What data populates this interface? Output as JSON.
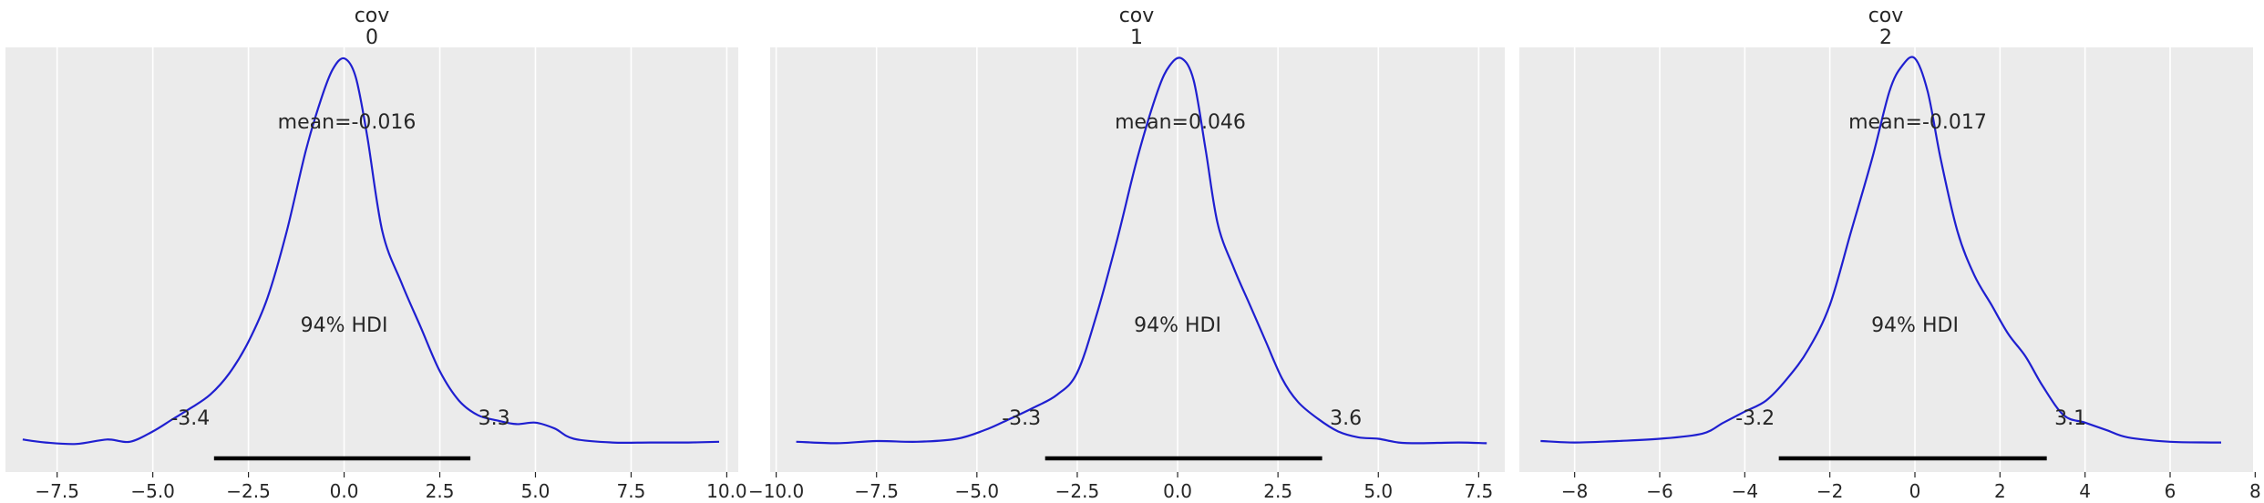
{
  "chart_data": [
    {
      "type": "line",
      "title": [
        "cov",
        "0"
      ],
      "series": [
        {
          "color": "#1f1fd0",
          "x": [
            -8.4,
            -7.8,
            -7.0,
            -6.2,
            -5.6,
            -5.0,
            -4.5,
            -4.0,
            -3.5,
            -3.0,
            -2.5,
            -2.0,
            -1.5,
            -1.0,
            -0.6,
            -0.3,
            0.0,
            0.3,
            0.6,
            1.0,
            1.5,
            2.0,
            2.5,
            3.0,
            3.5,
            4.0,
            4.5,
            5.0,
            5.5,
            6.0,
            7.0,
            8.0,
            9.0,
            9.8
          ],
          "y": [
            0.007,
            0.003,
            0.001,
            0.007,
            0.004,
            0.018,
            0.034,
            0.05,
            0.068,
            0.097,
            0.14,
            0.2,
            0.29,
            0.4,
            0.47,
            0.51,
            0.525,
            0.5,
            0.42,
            0.29,
            0.22,
            0.16,
            0.1,
            0.06,
            0.04,
            0.033,
            0.028,
            0.03,
            0.022,
            0.008,
            0.003,
            0.003,
            0.003,
            0.004
          ]
        }
      ],
      "mean_label": "mean=-0.016",
      "hdi_label": "94% HDI",
      "hdi": [
        -3.4,
        3.3
      ],
      "hdi_low_label": "-3.4",
      "hdi_high_label": "3.3",
      "xlim": [
        -8.85,
        10.3
      ],
      "xticks": [
        -7.5,
        -5.0,
        -2.5,
        0.0,
        2.5,
        5.0,
        7.5,
        10.0
      ],
      "xtick_labels": [
        "−7.5",
        "−5.0",
        "−2.5",
        "0.0",
        "2.5",
        "5.0",
        "7.5",
        "10.0"
      ],
      "grid": true,
      "background": "#ebebeb"
    },
    {
      "type": "line",
      "title": [
        "cov",
        "1"
      ],
      "series": [
        {
          "color": "#1f1fd0",
          "x": [
            -9.5,
            -8.5,
            -7.5,
            -6.5,
            -5.5,
            -4.8,
            -4.3,
            -3.6,
            -3.0,
            -2.5,
            -2.0,
            -1.5,
            -1.0,
            -0.5,
            -0.2,
            0.1,
            0.4,
            0.7,
            1.0,
            1.4,
            1.8,
            2.2,
            2.6,
            3.0,
            3.5,
            4.0,
            4.5,
            5.0,
            5.5,
            6.0,
            7.0,
            7.7
          ],
          "y": [
            0.004,
            0.002,
            0.005,
            0.004,
            0.008,
            0.02,
            0.032,
            0.05,
            0.068,
            0.098,
            0.18,
            0.28,
            0.39,
            0.48,
            0.515,
            0.525,
            0.495,
            0.4,
            0.3,
            0.24,
            0.19,
            0.14,
            0.09,
            0.058,
            0.035,
            0.018,
            0.01,
            0.008,
            0.003,
            0.002,
            0.003,
            0.002
          ]
        }
      ],
      "mean_label": "mean=0.046",
      "hdi_label": "94% HDI",
      "hdi": [
        -3.3,
        3.6
      ],
      "hdi_low_label": "-3.3",
      "hdi_high_label": "3.6",
      "xlim": [
        -10.15,
        8.15
      ],
      "xticks": [
        -10.0,
        -7.5,
        -5.0,
        -2.5,
        0.0,
        2.5,
        5.0,
        7.5
      ],
      "xtick_labels": [
        "−10.0",
        "−7.5",
        "−5.0",
        "−2.5",
        "0.0",
        "2.5",
        "5.0",
        "7.5"
      ],
      "grid": true,
      "background": "#ebebeb"
    },
    {
      "type": "line",
      "title": [
        "cov",
        "2"
      ],
      "series": [
        {
          "color": "#1f1fd0",
          "x": [
            -8.8,
            -8.0,
            -7.0,
            -6.0,
            -5.0,
            -4.5,
            -4.0,
            -3.5,
            -3.0,
            -2.5,
            -2.0,
            -1.5,
            -1.0,
            -0.6,
            -0.3,
            0.0,
            0.3,
            0.6,
            1.0,
            1.4,
            1.8,
            2.2,
            2.6,
            3.0,
            3.5,
            4.0,
            4.5,
            5.0,
            6.0,
            7.0,
            7.2
          ],
          "y": [
            0.005,
            0.003,
            0.005,
            0.008,
            0.015,
            0.03,
            0.045,
            0.06,
            0.09,
            0.13,
            0.19,
            0.29,
            0.39,
            0.48,
            0.515,
            0.525,
            0.48,
            0.39,
            0.29,
            0.23,
            0.19,
            0.15,
            0.12,
            0.08,
            0.04,
            0.03,
            0.02,
            0.01,
            0.004,
            0.003,
            0.003
          ]
        }
      ],
      "mean_label": "mean=-0.017",
      "hdi_label": "94% HDI",
      "hdi": [
        -3.2,
        3.1
      ],
      "hdi_low_label": "-3.2",
      "hdi_high_label": "3.1",
      "xlim": [
        -9.3,
        7.95
      ],
      "xticks": [
        -8,
        -6,
        -4,
        -2,
        0,
        2,
        4,
        6,
        8
      ],
      "xtick_labels": [
        "−8",
        "−6",
        "−4",
        "−2",
        "0",
        "2",
        "4",
        "6",
        "8"
      ],
      "grid": true,
      "background": "#ebebeb"
    }
  ]
}
